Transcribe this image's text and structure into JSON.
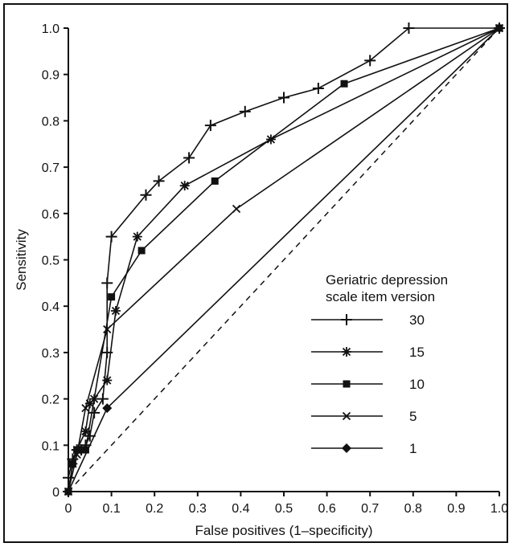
{
  "chart_data": {
    "type": "line",
    "title": "",
    "xlabel": "False positives (1–specificity)",
    "ylabel": "Sensitivity",
    "xlim": [
      0,
      1
    ],
    "ylim": [
      0,
      1
    ],
    "x_ticks": [
      "0",
      "0.1",
      "0.2",
      "0.3",
      "0.4",
      "0.5",
      "0.6",
      "0.7",
      "0.8",
      "0.9",
      "1.0"
    ],
    "y_ticks": [
      "0",
      "0.1",
      "0.2",
      "0.3",
      "0.4",
      "0.5",
      "0.6",
      "0.7",
      "0.8",
      "0.9",
      "1.0"
    ],
    "grid": false,
    "legend_title": "Geriatric depression scale item version",
    "legend_position": "right",
    "reference_line": "dashed diagonal",
    "series": [
      {
        "name": "30",
        "marker": "plus",
        "points": [
          [
            0,
            0
          ],
          [
            0,
            0.03
          ],
          [
            0.01,
            0.07
          ],
          [
            0.02,
            0.09
          ],
          [
            0.03,
            0.09
          ],
          [
            0.04,
            0.1
          ],
          [
            0.05,
            0.12
          ],
          [
            0.06,
            0.17
          ],
          [
            0.08,
            0.2
          ],
          [
            0.09,
            0.3
          ],
          [
            0.09,
            0.45
          ],
          [
            0.1,
            0.55
          ],
          [
            0.18,
            0.64
          ],
          [
            0.21,
            0.67
          ],
          [
            0.28,
            0.72
          ],
          [
            0.33,
            0.79
          ],
          [
            0.41,
            0.82
          ],
          [
            0.5,
            0.85
          ],
          [
            0.58,
            0.87
          ],
          [
            0.7,
            0.93
          ],
          [
            0.79,
            1.0
          ],
          [
            1.0,
            1.0
          ]
        ]
      },
      {
        "name": "15",
        "marker": "star",
        "points": [
          [
            0,
            0
          ],
          [
            0.01,
            0.06
          ],
          [
            0.02,
            0.09
          ],
          [
            0.04,
            0.13
          ],
          [
            0.05,
            0.19
          ],
          [
            0.06,
            0.2
          ],
          [
            0.09,
            0.24
          ],
          [
            0.11,
            0.39
          ],
          [
            0.16,
            0.55
          ],
          [
            0.27,
            0.66
          ],
          [
            0.47,
            0.76
          ],
          [
            1.0,
            1.0
          ]
        ]
      },
      {
        "name": "10",
        "marker": "square",
        "points": [
          [
            0,
            0
          ],
          [
            0.01,
            0.06
          ],
          [
            0.02,
            0.09
          ],
          [
            0.04,
            0.09
          ],
          [
            0.1,
            0.42
          ],
          [
            0.17,
            0.52
          ],
          [
            0.34,
            0.67
          ],
          [
            0.64,
            0.88
          ],
          [
            1.0,
            1.0
          ]
        ]
      },
      {
        "name": "5",
        "marker": "cross",
        "points": [
          [
            0,
            0
          ],
          [
            0.02,
            0.08
          ],
          [
            0.04,
            0.18
          ],
          [
            0.09,
            0.35
          ],
          [
            0.39,
            0.61
          ],
          [
            1.0,
            1.0
          ]
        ]
      },
      {
        "name": "1",
        "marker": "diamond",
        "points": [
          [
            0,
            0
          ],
          [
            0.09,
            0.18
          ],
          [
            1.0,
            1.0
          ]
        ]
      }
    ]
  }
}
